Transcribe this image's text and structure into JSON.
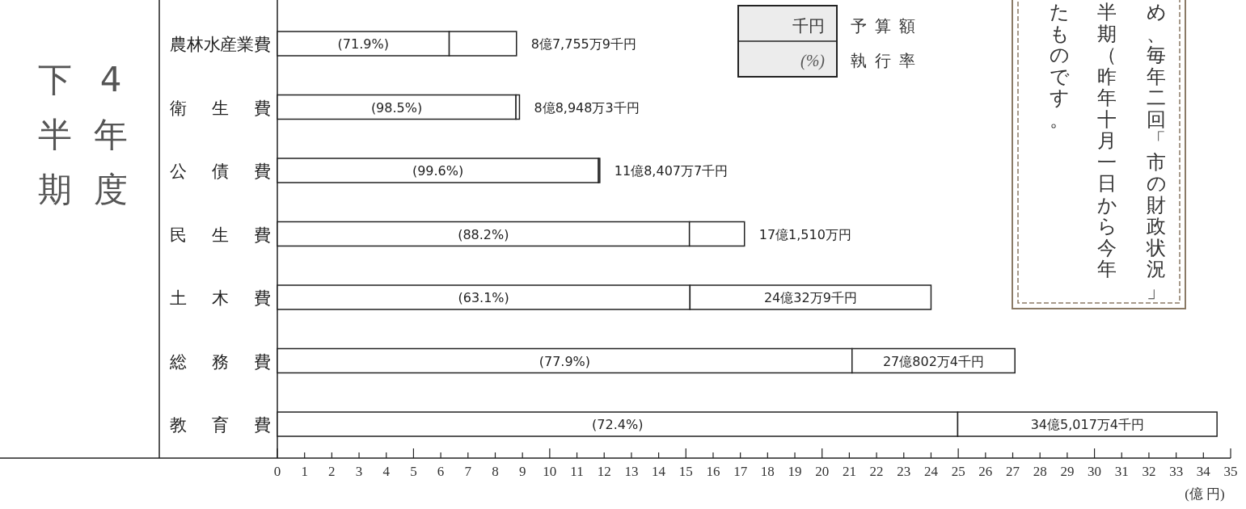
{
  "chart_data": {
    "type": "bar",
    "orientation": "horizontal",
    "stacked": true,
    "title": "4年度",
    "subtitle": "下半期",
    "xlabel": "(億 円)",
    "categories": [
      "農林水産業費",
      "衛生費",
      "公債費",
      "民生費",
      "土木費",
      "総務費",
      "教育費"
    ],
    "series": [
      {
        "color": "#ffffff",
        "values": [
          6.31,
          8.76,
          11.79,
          15.13,
          15.15,
          21.1,
          24.98
        ]
      },
      {
        "color": "#ffffff",
        "values": [
          2.47,
          0.13,
          0.05,
          2.02,
          8.85,
          5.98,
          9.52
        ]
      }
    ],
    "totals": [
      "8億7,755万9千円",
      "8億8,948万3千円",
      "11億8,407万7千円",
      "17億1,510万円",
      "24億32万9千円",
      "27億802万4千円",
      "34億5,017万4千円"
    ],
    "xlim": [
      0,
      35
    ],
    "xticks": [
      0,
      1,
      2,
      3,
      4,
      5,
      6,
      7,
      8,
      9,
      10,
      11,
      12,
      13,
      14,
      15,
      16,
      17,
      18,
      19,
      20,
      21,
      22,
      23,
      24,
      25,
      26,
      27,
      28,
      29,
      30,
      31,
      32,
      33,
      34,
      35
    ],
    "annotations": [
      "(71.9%)",
      "(98.5%)",
      "(99.6%)",
      "(88.2%)",
      "(63.1%)",
      "(77.9%)",
      "(72.4%)",
      "千円",
      "(%)",
      "予算額",
      "執行率",
      "め、毎年二回「市の財政状況」",
      "半期（昨年十月一日から今年",
      "たものです。"
    ]
  }
}
